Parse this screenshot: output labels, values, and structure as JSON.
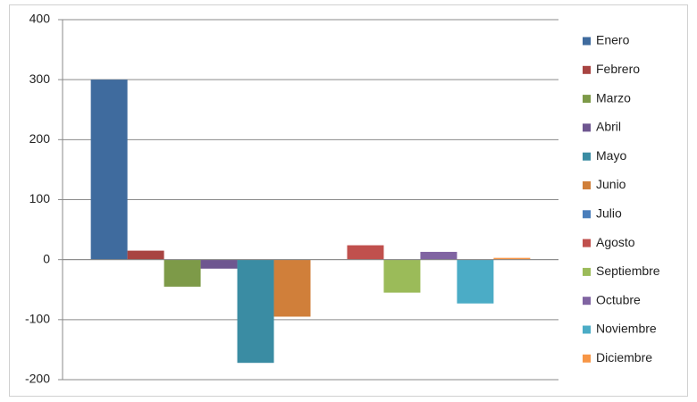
{
  "chart_data": {
    "type": "bar",
    "categories": [
      null
    ],
    "series": [
      {
        "name": "Enero",
        "color": "#3F6B9E",
        "values": [
          300
        ]
      },
      {
        "name": "Febrero",
        "color": "#A84442",
        "values": [
          15
        ]
      },
      {
        "name": "Marzo",
        "color": "#7D9A48",
        "values": [
          -45
        ]
      },
      {
        "name": "Abril",
        "color": "#6E5690",
        "values": [
          -15
        ]
      },
      {
        "name": "Mayo",
        "color": "#3A8CA3",
        "values": [
          -172
        ]
      },
      {
        "name": "Junio",
        "color": "#D07F3A",
        "values": [
          -95
        ]
      },
      {
        "name": "Julio",
        "color": "#4A7EBB",
        "values": [
          0
        ]
      },
      {
        "name": "Agosto",
        "color": "#C0504D",
        "values": [
          24
        ]
      },
      {
        "name": "Septiembre",
        "color": "#9BBB59",
        "values": [
          -55
        ]
      },
      {
        "name": "Octubre",
        "color": "#8064A2",
        "values": [
          13
        ]
      },
      {
        "name": "Noviembre",
        "color": "#4BACC6",
        "values": [
          -73
        ]
      },
      {
        "name": "Diciembre",
        "color": "#F79646",
        "values": [
          3
        ]
      }
    ],
    "ylim": [
      -200,
      400
    ],
    "yticks": [
      -200,
      -100,
      0,
      100,
      200,
      300,
      400
    ],
    "grid": true,
    "legend": "right"
  }
}
